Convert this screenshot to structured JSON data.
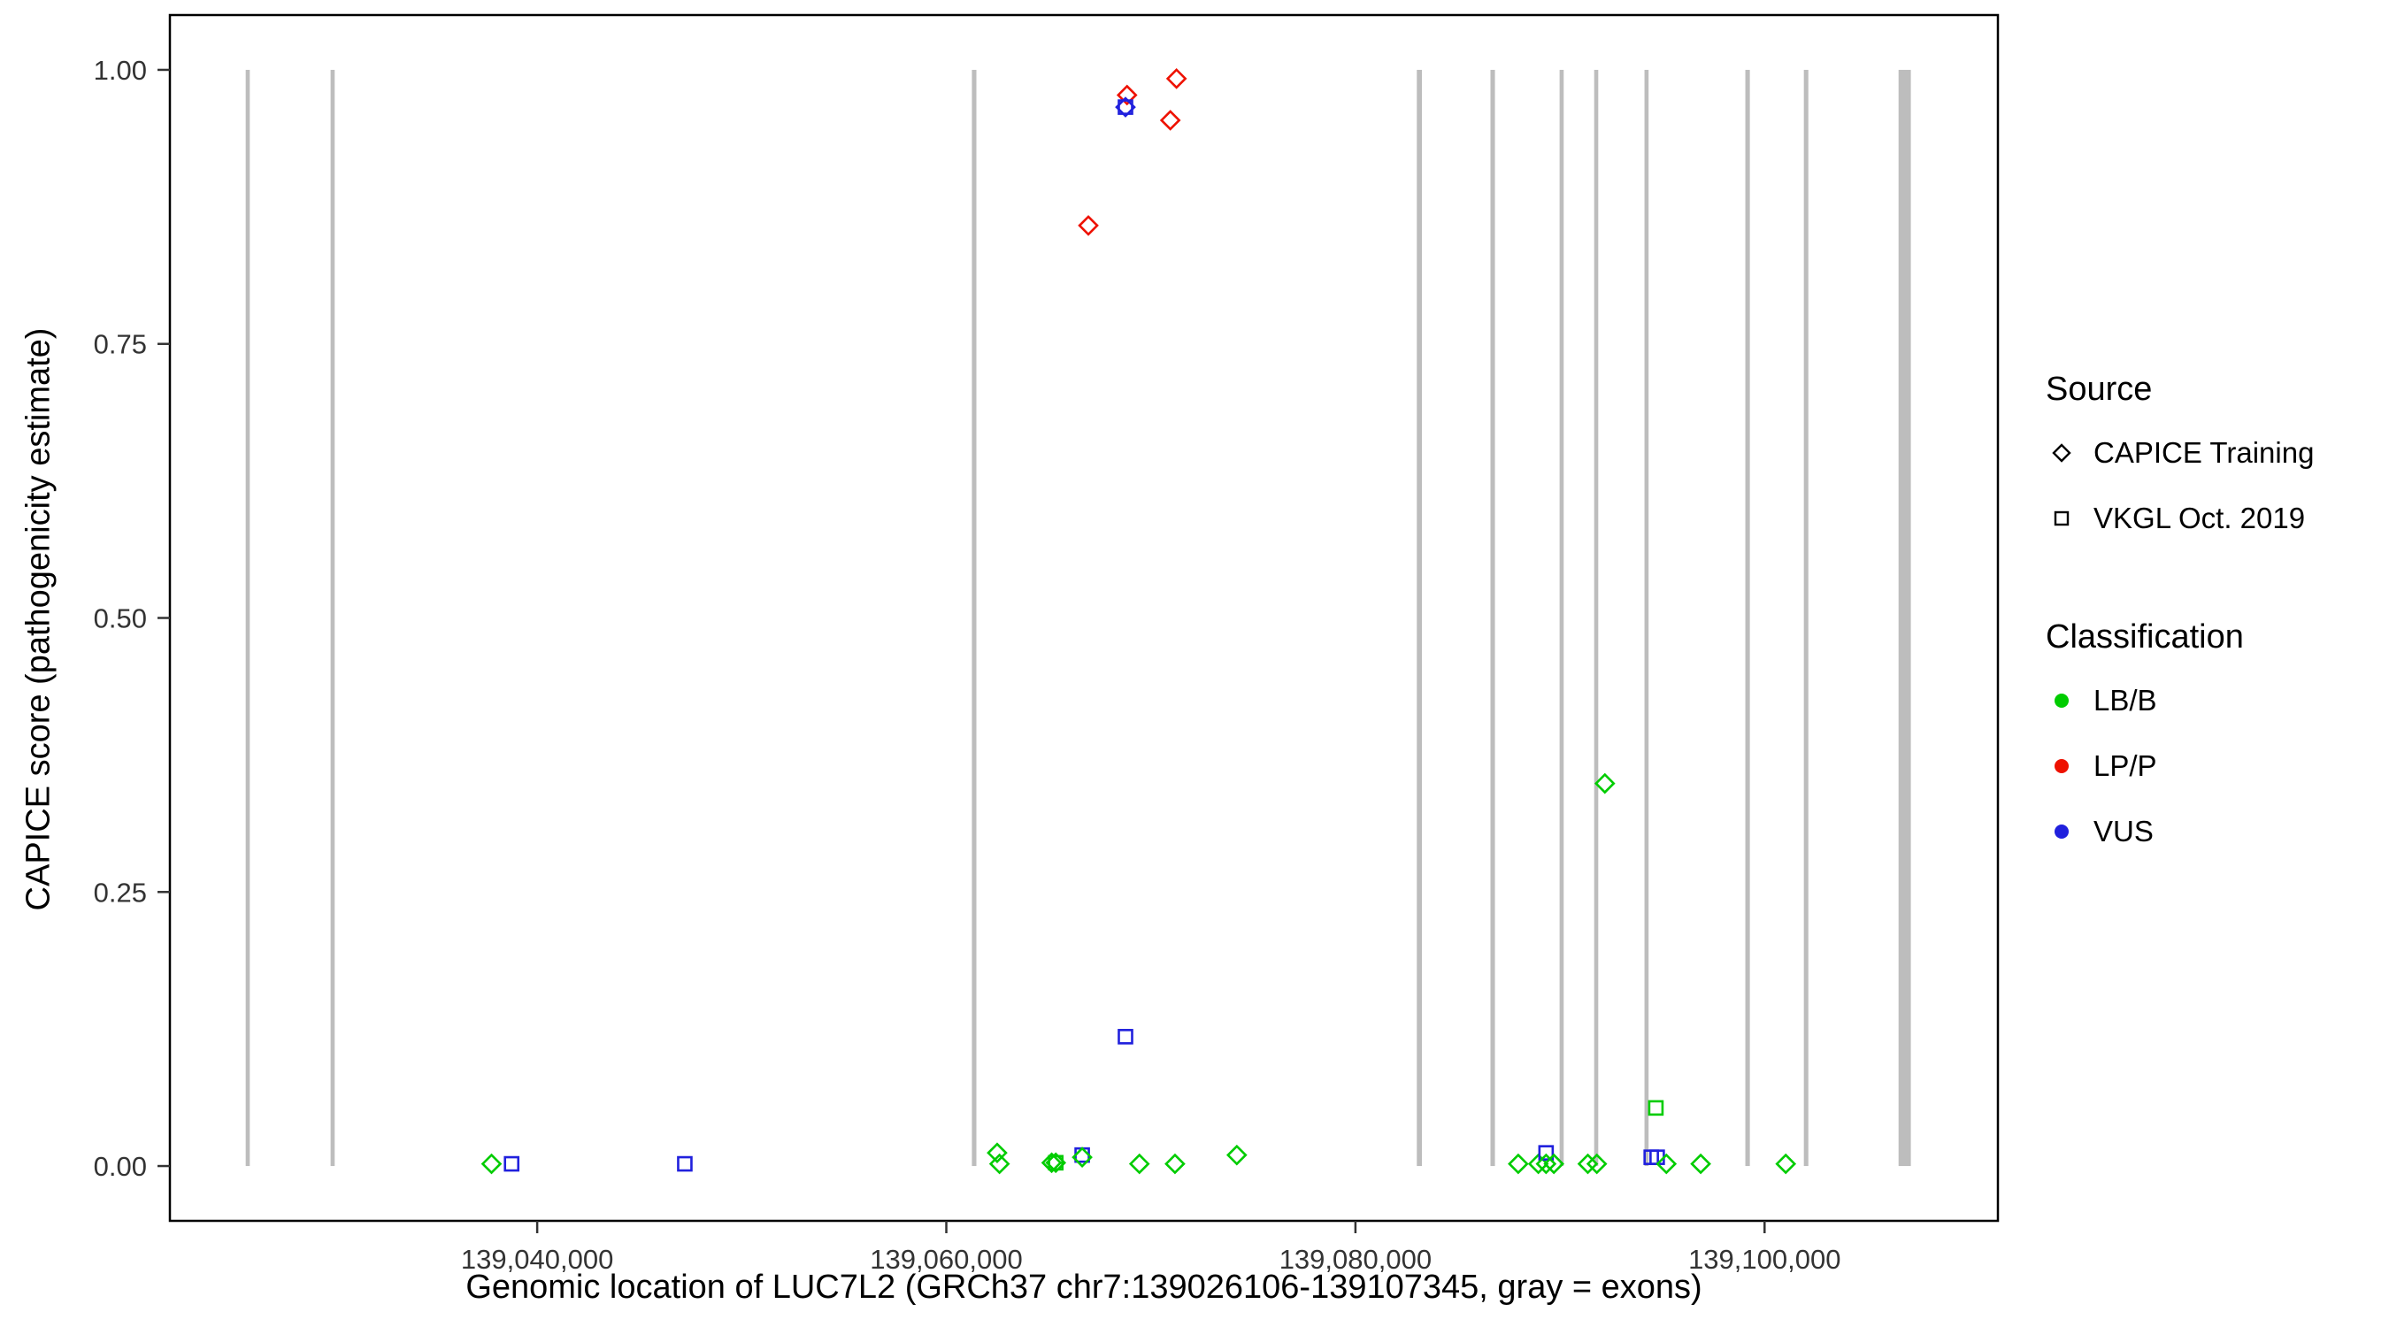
{
  "chart_data": {
    "type": "scatter",
    "title": "",
    "xlabel": "Genomic location of LUC7L2 (GRCh37 chr7:139026106-139107345, gray = exons)",
    "ylabel": "CAPICE score (pathogenicity estimate)",
    "xlim": [
      139022044,
      139111407
    ],
    "ylim": [
      -0.05,
      1.05
    ],
    "grid": false,
    "x_ticks": [
      139040000,
      139060000,
      139080000,
      139100000
    ],
    "x_tick_labels": [
      "139,040,000",
      "139,060,000",
      "139,080,000",
      "139,100,000"
    ],
    "y_ticks": [
      0,
      0.25,
      0.5,
      0.75,
      1
    ],
    "y_tick_labels": [
      "0.00",
      "0.25",
      "0.50",
      "0.75",
      "1.00"
    ],
    "colors": {
      "LB/B": "#00CC00",
      "LP/P": "#EE1100",
      "VUS": "#2020DD",
      "exon": "#BDBDBD",
      "tick_text": "#333333"
    },
    "exons": [
      {
        "start": 139025750,
        "end": 139025950
      },
      {
        "start": 139029900,
        "end": 139030100
      },
      {
        "start": 139061250,
        "end": 139061470
      },
      {
        "start": 139083000,
        "end": 139083250
      },
      {
        "start": 139086600,
        "end": 139086820
      },
      {
        "start": 139089980,
        "end": 139090180
      },
      {
        "start": 139091670,
        "end": 139091870
      },
      {
        "start": 139094130,
        "end": 139094330
      },
      {
        "start": 139099060,
        "end": 139099280
      },
      {
        "start": 139101920,
        "end": 139102140
      },
      {
        "start": 139106550,
        "end": 139107150
      }
    ],
    "points": [
      {
        "x": 139066944,
        "y": 0.858,
        "src": "capice",
        "cls": "LP/P"
      },
      {
        "x": 139068834,
        "y": 0.977,
        "src": "capice",
        "cls": "LP/P"
      },
      {
        "x": 139070951,
        "y": 0.954,
        "src": "capice",
        "cls": "LP/P"
      },
      {
        "x": 139071253,
        "y": 0.992,
        "src": "capice",
        "cls": "LP/P"
      },
      {
        "x": 139068758,
        "y": 0.966,
        "src": "vkgl",
        "cls": "VUS"
      },
      {
        "x": 139068758,
        "y": 0.966,
        "src": "capice",
        "cls": "VUS"
      },
      {
        "x": 139068758,
        "y": 0.118,
        "src": "vkgl",
        "cls": "VUS"
      },
      {
        "x": 139092192,
        "y": 0.349,
        "src": "capice",
        "cls": "LB/B"
      },
      {
        "x": 139094686,
        "y": 0.053,
        "src": "vkgl",
        "cls": "LB/B"
      },
      {
        "x": 139037767,
        "y": 0.002,
        "src": "capice",
        "cls": "LB/B"
      },
      {
        "x": 139038750,
        "y": 0.002,
        "src": "vkgl",
        "cls": "VUS"
      },
      {
        "x": 139047216,
        "y": 0.002,
        "src": "vkgl",
        "cls": "VUS"
      },
      {
        "x": 139062485,
        "y": 0.012,
        "src": "capice",
        "cls": "LB/B"
      },
      {
        "x": 139062600,
        "y": 0.002,
        "src": "capice",
        "cls": "LB/B"
      },
      {
        "x": 139065150,
        "y": 0.003,
        "src": "capice",
        "cls": "LB/B"
      },
      {
        "x": 139065350,
        "y": 0.003,
        "src": "capice",
        "cls": "LB/B"
      },
      {
        "x": 139065350,
        "y": 0.003,
        "src": "vkgl",
        "cls": "LB/B"
      },
      {
        "x": 139066642,
        "y": 0.01,
        "src": "vkgl",
        "cls": "VUS"
      },
      {
        "x": 139066642,
        "y": 0.008,
        "src": "capice",
        "cls": "LB/B"
      },
      {
        "x": 139069439,
        "y": 0.002,
        "src": "capice",
        "cls": "LB/B"
      },
      {
        "x": 139071178,
        "y": 0.002,
        "src": "capice",
        "cls": "LB/B"
      },
      {
        "x": 139074201,
        "y": 0.01,
        "src": "capice",
        "cls": "LB/B"
      },
      {
        "x": 139087958,
        "y": 0.002,
        "src": "capice",
        "cls": "LB/B"
      },
      {
        "x": 139088941,
        "y": 0.002,
        "src": "capice",
        "cls": "LB/B"
      },
      {
        "x": 139089319,
        "y": 0.012,
        "src": "vkgl",
        "cls": "VUS"
      },
      {
        "x": 139089319,
        "y": 0.002,
        "src": "capice",
        "cls": "LB/B"
      },
      {
        "x": 139089700,
        "y": 0.002,
        "src": "capice",
        "cls": "LB/B"
      },
      {
        "x": 139091360,
        "y": 0.002,
        "src": "capice",
        "cls": "LB/B"
      },
      {
        "x": 139091800,
        "y": 0.002,
        "src": "capice",
        "cls": "LB/B"
      },
      {
        "x": 139094459,
        "y": 0.008,
        "src": "vkgl",
        "cls": "VUS"
      },
      {
        "x": 139094750,
        "y": 0.008,
        "src": "vkgl",
        "cls": "VUS"
      },
      {
        "x": 139095200,
        "y": 0.002,
        "src": "capice",
        "cls": "LB/B"
      },
      {
        "x": 139096878,
        "y": 0.002,
        "src": "capice",
        "cls": "LB/B"
      },
      {
        "x": 139101036,
        "y": 0.002,
        "src": "capice",
        "cls": "LB/B"
      }
    ]
  },
  "legend": {
    "source_title": "Source",
    "source_items": [
      {
        "label": "CAPICE Training",
        "marker": "diamond"
      },
      {
        "label": "VKGL Oct. 2019",
        "marker": "square"
      }
    ],
    "classification_title": "Classification",
    "classification_items": [
      {
        "label": "LB/B",
        "color": "#00CC00"
      },
      {
        "label": "LP/P",
        "color": "#EE1100"
      },
      {
        "label": "VUS",
        "color": "#2020DD"
      }
    ]
  }
}
